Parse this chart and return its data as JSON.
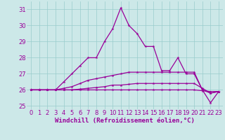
{
  "x": [
    0,
    1,
    2,
    3,
    4,
    5,
    6,
    7,
    8,
    9,
    10,
    11,
    12,
    13,
    14,
    15,
    16,
    17,
    18,
    19,
    20,
    21,
    22,
    23
  ],
  "line1": [
    26.0,
    26.0,
    26.0,
    26.0,
    26.5,
    27.0,
    27.5,
    28.0,
    28.0,
    29.0,
    29.8,
    31.1,
    30.0,
    29.5,
    28.7,
    28.7,
    27.2,
    27.2,
    28.0,
    27.0,
    27.0,
    26.0,
    25.2,
    25.9
  ],
  "line2": [
    26.0,
    26.0,
    26.0,
    26.0,
    26.1,
    26.2,
    26.4,
    26.6,
    26.7,
    26.8,
    26.9,
    27.0,
    27.1,
    27.1,
    27.1,
    27.1,
    27.1,
    27.1,
    27.1,
    27.1,
    27.1,
    26.0,
    25.8,
    25.9
  ],
  "line3": [
    26.0,
    26.0,
    26.0,
    26.0,
    26.0,
    26.0,
    26.05,
    26.1,
    26.15,
    26.2,
    26.3,
    26.3,
    26.35,
    26.4,
    26.4,
    26.4,
    26.4,
    26.4,
    26.4,
    26.4,
    26.4,
    26.1,
    25.8,
    25.9
  ],
  "line4": [
    26.0,
    26.0,
    26.0,
    26.0,
    26.0,
    26.0,
    26.0,
    26.0,
    26.0,
    26.0,
    26.0,
    26.0,
    26.0,
    26.0,
    26.0,
    26.0,
    26.0,
    26.0,
    26.0,
    26.0,
    26.0,
    25.95,
    25.9,
    25.9
  ],
  "line_color": "#990099",
  "bg_color": "#cce8e8",
  "grid_color": "#99cccc",
  "xlabel": "Windchill (Refroidissement éolien,°C)",
  "ylim": [
    24.8,
    31.5
  ],
  "xlim_min": -0.5,
  "xlim_max": 23.5,
  "yticks": [
    25,
    26,
    27,
    28,
    29,
    30,
    31
  ],
  "xticks": [
    0,
    1,
    2,
    3,
    4,
    5,
    6,
    7,
    8,
    9,
    10,
    11,
    12,
    13,
    14,
    15,
    16,
    17,
    18,
    19,
    20,
    21,
    22,
    23
  ],
  "xlabel_fontsize": 6.5,
  "tick_fontsize": 6,
  "line_width": 0.9,
  "marker": "*",
  "marker_size": 3
}
